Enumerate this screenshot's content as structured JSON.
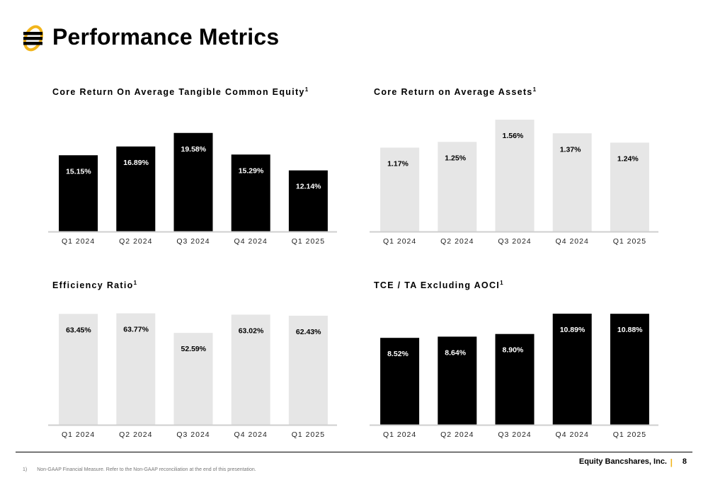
{
  "page": {
    "title": "Performance Metrics",
    "company": "Equity Bancshares, Inc.",
    "separator": "|",
    "page_number": "8",
    "footnote_num": "1)",
    "footnote_text": "Non-GAAP Financial Measure. Refer to the Non-GAAP reconciliation at the end of this presentation."
  },
  "colors": {
    "dark_bar": "#000000",
    "light_bar": "#e6e6e6",
    "accent": "#f2b51b",
    "axis": "#cfcfcf"
  },
  "chart_data": [
    {
      "type": "bar",
      "title": "Core Return On Average Tangible Common Equity",
      "title_sup": "1",
      "categories": [
        "Q1 2024",
        "Q2 2024",
        "Q3 2024",
        "Q4 2024",
        "Q1 2025"
      ],
      "values": [
        15.15,
        16.89,
        19.58,
        15.29,
        12.14
      ],
      "labels": [
        "15.15%",
        "16.89%",
        "19.58%",
        "15.29%",
        "12.14%"
      ],
      "ylim": [
        0,
        22.5
      ],
      "style": "dark"
    },
    {
      "type": "bar",
      "title": "Core Return on Average Assets",
      "title_sup": "1",
      "categories": [
        "Q1 2024",
        "Q2 2024",
        "Q3 2024",
        "Q4 2024",
        "Q1 2025"
      ],
      "values": [
        1.17,
        1.25,
        1.56,
        1.37,
        1.24
      ],
      "labels": [
        "1.17%",
        "1.25%",
        "1.56%",
        "1.37%",
        "1.24%"
      ],
      "ylim": [
        0,
        1.58
      ],
      "style": "light"
    },
    {
      "type": "bar",
      "title": "Efficiency Ratio",
      "title_sup": "1",
      "categories": [
        "Q1 2024",
        "Q2 2024",
        "Q3 2024",
        "Q4 2024",
        "Q1 2025"
      ],
      "values": [
        63.45,
        63.77,
        52.59,
        63.02,
        62.43
      ],
      "labels": [
        "63.45%",
        "63.77%",
        "52.59%",
        "63.02%",
        "62.43%"
      ],
      "ylim": [
        0,
        64.8
      ],
      "style": "light"
    },
    {
      "type": "bar",
      "title": "TCE / TA Excluding AOCI",
      "title_sup": "1",
      "categories": [
        "Q1 2024",
        "Q2 2024",
        "Q3 2024",
        "Q4 2024",
        "Q1 2025"
      ],
      "values": [
        8.52,
        8.64,
        8.9,
        10.89,
        10.88
      ],
      "labels": [
        "8.52%",
        "8.64%",
        "8.90%",
        "10.89%",
        "10.88%"
      ],
      "ylim": [
        0,
        11.1
      ],
      "style": "dark"
    }
  ]
}
